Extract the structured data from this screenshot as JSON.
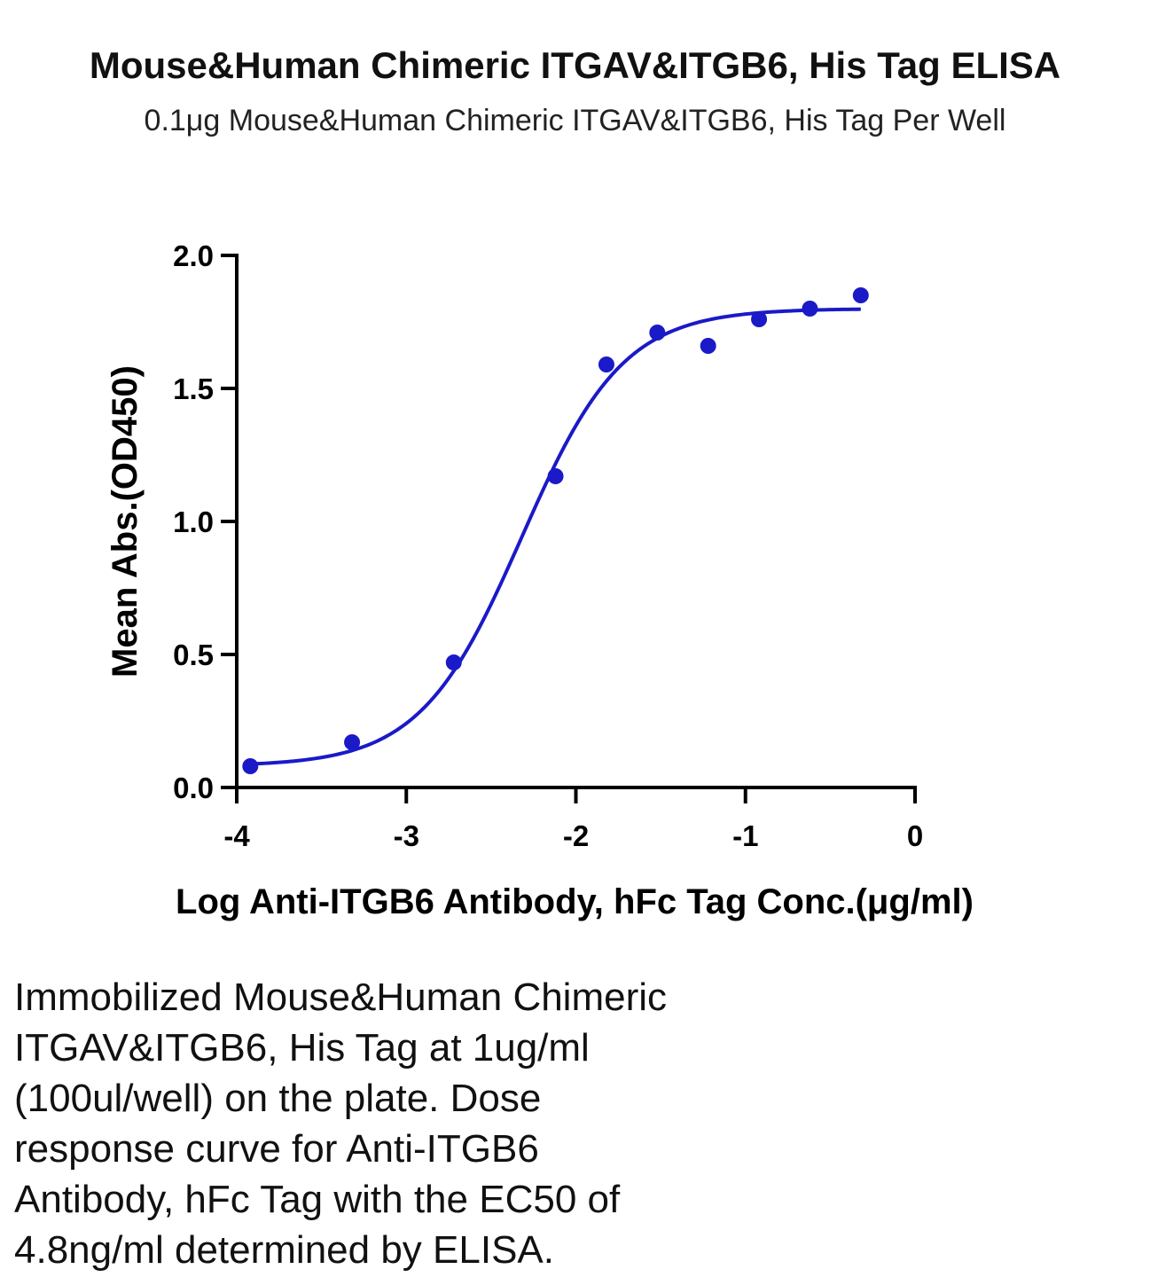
{
  "title": "Mouse&Human Chimeric ITGAV&ITGB6, His Tag ELISA",
  "subtitle": "0.1μg Mouse&Human Chimeric ITGAV&ITGB6, His Tag Per Well",
  "caption": "Immobilized Mouse&Human Chimeric\nITGAV&ITGB6, His Tag at 1ug/ml\n(100ul/well) on the plate. Dose\nresponse curve for Anti-ITGB6\nAntibody, hFc Tag with the EC50 of\n4.8ng/ml determined by ELISA.",
  "chart_data": {
    "type": "scatter",
    "xlabel": "Log Anti-ITGB6 Antibody, hFc Tag Conc.(μg/ml)",
    "ylabel": "Mean Abs.(OD450)",
    "xlim": [
      -4,
      0
    ],
    "ylim": [
      0,
      2.0
    ],
    "x_ticks": [
      -4,
      -3,
      -2,
      -1,
      0
    ],
    "x_tick_labels": [
      "-4",
      "-3",
      "-2",
      "-1",
      "0"
    ],
    "y_ticks": [
      0,
      0.5,
      1.0,
      1.5,
      2.0
    ],
    "y_tick_labels": [
      "0.0",
      "0.5",
      "1.0",
      "1.5",
      "2.0"
    ],
    "grid": false,
    "series": [
      {
        "type": "scatter",
        "x": [
          -3.92,
          -3.32,
          -2.72,
          -2.12,
          -1.82,
          -1.52,
          -1.22,
          -0.92,
          -0.62,
          -0.32
        ],
        "y": [
          0.08,
          0.17,
          0.47,
          1.17,
          1.59,
          1.71,
          1.66,
          1.76,
          1.8,
          1.85
        ]
      },
      {
        "type": "fit",
        "model": "4PL",
        "bottom": 0.08,
        "top": 1.8,
        "log_ec50": -2.32,
        "hill": 1.45,
        "x_range": [
          -3.92,
          -0.32
        ]
      }
    ],
    "colors": {
      "series": "#1a1ac8",
      "axis": "#000000"
    }
  }
}
